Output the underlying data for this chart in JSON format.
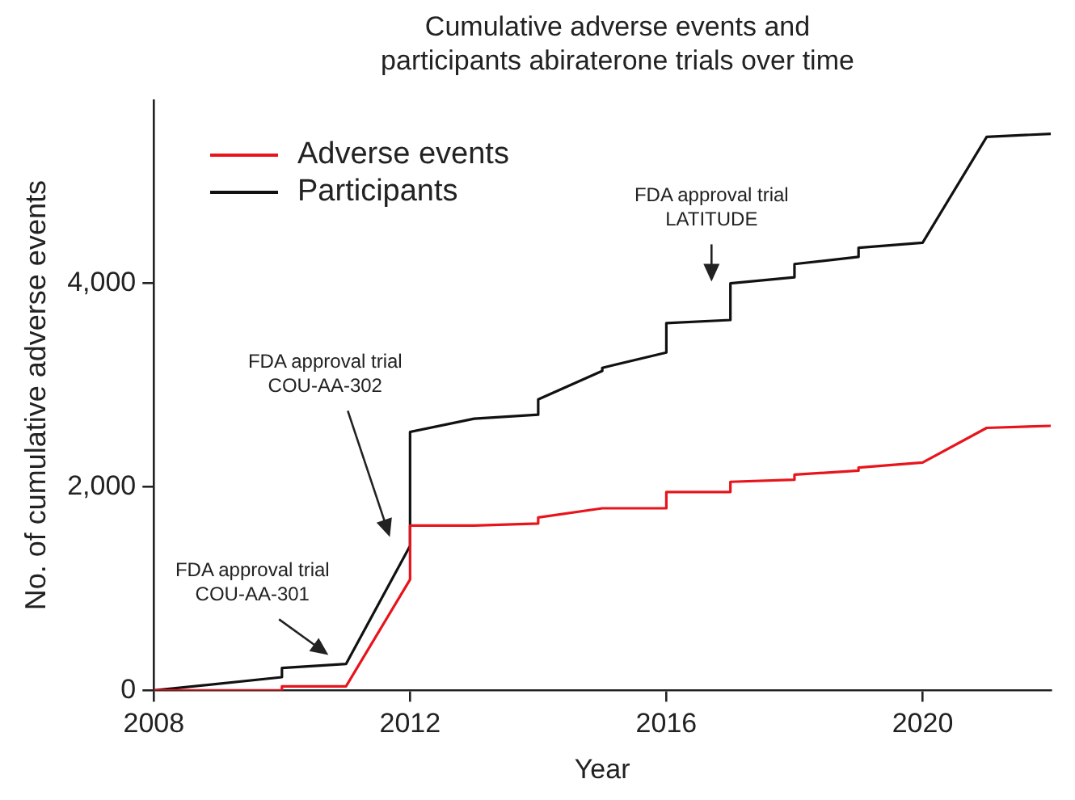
{
  "chart_data": {
    "type": "line",
    "title": "Cumulative adverse events and\nparticipants abiraterone trials over time",
    "xlabel": "Year",
    "ylabel": "No. of cumulative adverse events",
    "xlim": [
      2008,
      2022
    ],
    "xticks": [
      2008,
      2012,
      2016,
      2020
    ],
    "ylim": [
      0,
      5800
    ],
    "yticks": [
      0,
      {
        "value": 2000,
        "label": "2,000"
      },
      {
        "value": 4000,
        "label": "4,000"
      }
    ],
    "grid": false,
    "legend": "top left",
    "marker": "none",
    "line_style": "solid",
    "series": [
      {
        "name": "Adverse events",
        "color": "#e8141c",
        "x": [
          2008,
          2010,
          2010,
          2011,
          2012,
          2012,
          2013,
          2014,
          2014,
          2015,
          2016,
          2016,
          2017,
          2017,
          2018,
          2018,
          2019,
          2019,
          2020,
          2021,
          2022
        ],
        "values": [
          0,
          0,
          40,
          40,
          1090,
          1620,
          1620,
          1640,
          1700,
          1790,
          1790,
          1950,
          1950,
          2050,
          2070,
          2120,
          2160,
          2190,
          2240,
          2580,
          2600
        ]
      },
      {
        "name": "Participants",
        "color": "#111111",
        "x": [
          2008,
          2010,
          2010,
          2011,
          2012,
          2012,
          2013,
          2014,
          2014,
          2015,
          2015,
          2016,
          2016,
          2017,
          2017,
          2018,
          2018,
          2019,
          2019,
          2020,
          2021,
          2022
        ],
        "values": [
          0,
          130,
          220,
          260,
          1420,
          2540,
          2670,
          2710,
          2860,
          3140,
          3170,
          3320,
          3610,
          3640,
          4000,
          4060,
          4190,
          4260,
          4350,
          4400,
          5440,
          5470
        ]
      }
    ],
    "annotations": [
      "FDA approval trial\nCOU-AA-301",
      "FDA approval trial\nCOU-AA-302",
      "FDA approval trial\nLATITUDE"
    ]
  }
}
